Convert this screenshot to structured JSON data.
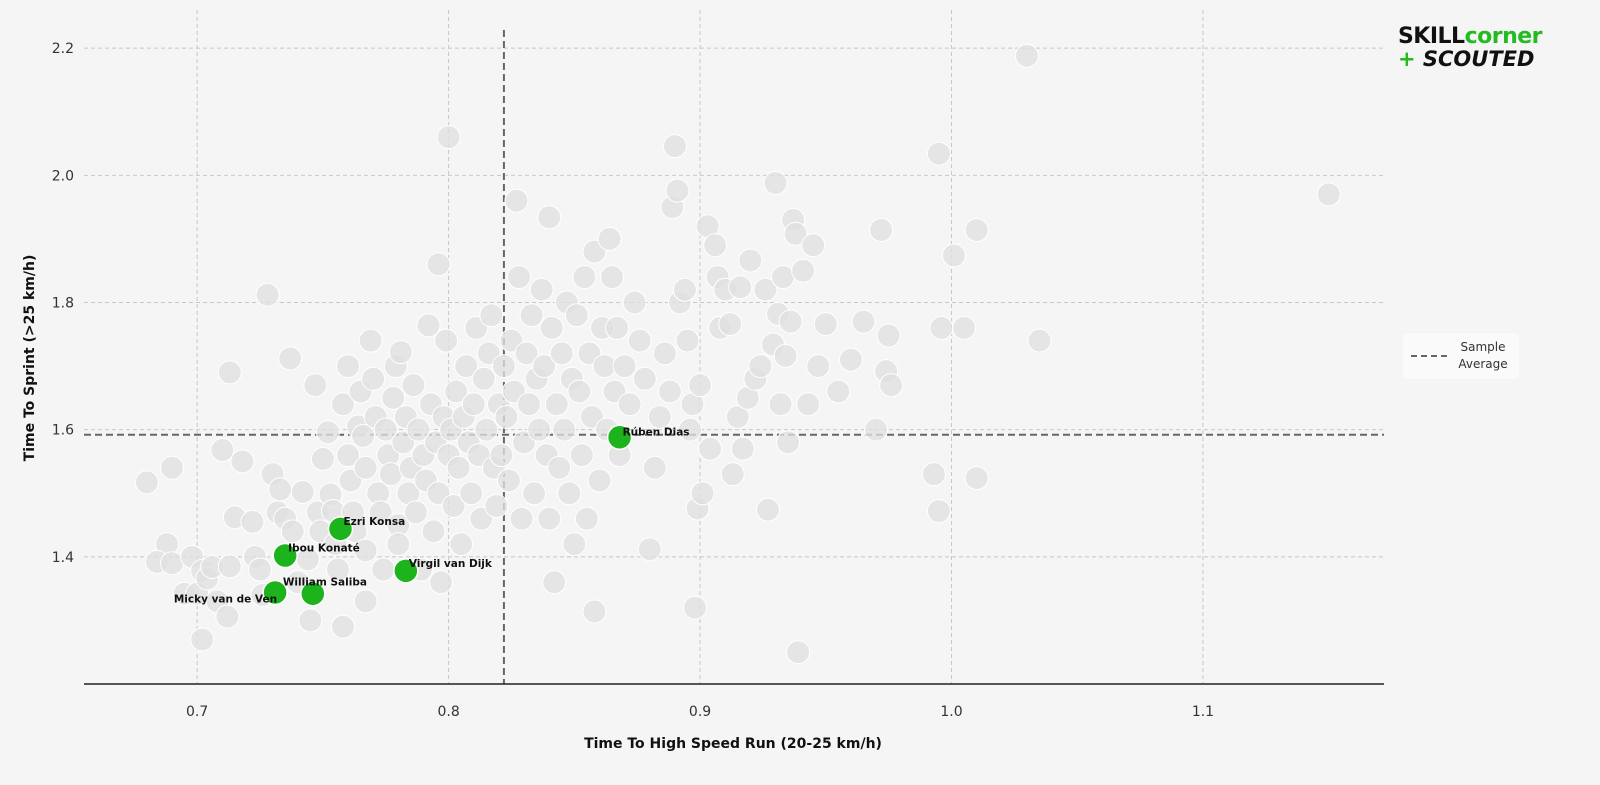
{
  "chart_data": {
    "type": "scatter",
    "xlabel": "Time To High Speed Run (20-25 km/h)",
    "ylabel": "Time To Sprint (>25 km/h)",
    "xlim": [
      0.655,
      1.172
    ],
    "ylim": [
      1.2,
      2.26
    ],
    "xticks": [
      0.7,
      0.8,
      0.9,
      1.0,
      1.1
    ],
    "xtick_labels": [
      "0.7",
      "0.8",
      "0.9",
      "1.0",
      "1.1"
    ],
    "yticks": [
      1.4,
      1.6,
      1.8,
      2.0,
      2.2
    ],
    "ytick_labels": [
      "1.4",
      "1.6",
      "1.8",
      "2.0",
      "2.2"
    ],
    "grid": true,
    "reference_lines": {
      "x": 0.822,
      "y": 1.592,
      "legend_label": "Sample Average"
    },
    "legend": {
      "label": "Sample Average",
      "position": "right"
    },
    "colors": {
      "highlight": "#1db31d",
      "background_points": "#e0e0e0",
      "average_line": "#666666"
    },
    "highlighted": [
      {
        "name": "Rúben Dias",
        "x": 0.868,
        "y": 1.588
      },
      {
        "name": "Ezri Konsa",
        "x": 0.757,
        "y": 1.444
      },
      {
        "name": "Ibou Konaté",
        "x": 0.735,
        "y": 1.402
      },
      {
        "name": "Virgil van Dijk",
        "x": 0.783,
        "y": 1.378
      },
      {
        "name": "William Saliba",
        "x": 0.746,
        "y": 1.342
      },
      {
        "name": "Micky van de Ven",
        "x": 0.731,
        "y": 1.344
      }
    ],
    "points": [
      [
        0.68,
        1.517
      ],
      [
        0.69,
        1.54
      ],
      [
        0.688,
        1.42
      ],
      [
        0.684,
        1.392
      ],
      [
        0.69,
        1.39
      ],
      [
        0.695,
        1.342
      ],
      [
        0.7,
        1.342
      ],
      [
        0.698,
        1.4
      ],
      [
        0.702,
        1.378
      ],
      [
        0.704,
        1.366
      ],
      [
        0.706,
        1.384
      ],
      [
        0.708,
        1.33
      ],
      [
        0.702,
        1.27
      ],
      [
        0.71,
        1.568
      ],
      [
        0.713,
        1.69
      ],
      [
        0.713,
        1.385
      ],
      [
        0.715,
        1.462
      ],
      [
        0.712,
        1.306
      ],
      [
        0.718,
        1.55
      ],
      [
        0.722,
        1.455
      ],
      [
        0.723,
        1.4
      ],
      [
        0.725,
        1.38
      ],
      [
        0.726,
        1.34
      ],
      [
        0.728,
        1.812
      ],
      [
        0.73,
        1.53
      ],
      [
        0.732,
        1.47
      ],
      [
        0.733,
        1.506
      ],
      [
        0.735,
        1.46
      ],
      [
        0.737,
        1.712
      ],
      [
        0.738,
        1.44
      ],
      [
        0.74,
        1.36
      ],
      [
        0.742,
        1.502
      ],
      [
        0.744,
        1.396
      ],
      [
        0.745,
        1.3
      ],
      [
        0.747,
        1.67
      ],
      [
        0.748,
        1.47
      ],
      [
        0.749,
        1.44
      ],
      [
        0.75,
        1.554
      ],
      [
        0.752,
        1.596
      ],
      [
        0.753,
        1.498
      ],
      [
        0.754,
        1.472
      ],
      [
        0.755,
        1.42
      ],
      [
        0.756,
        1.38
      ],
      [
        0.758,
        1.64
      ],
      [
        0.758,
        1.29
      ],
      [
        0.76,
        1.7
      ],
      [
        0.76,
        1.56
      ],
      [
        0.761,
        1.52
      ],
      [
        0.762,
        1.47
      ],
      [
        0.763,
        1.44
      ],
      [
        0.764,
        1.605
      ],
      [
        0.765,
        1.66
      ],
      [
        0.766,
        1.59
      ],
      [
        0.767,
        1.54
      ],
      [
        0.767,
        1.41
      ],
      [
        0.767,
        1.33
      ],
      [
        0.769,
        1.74
      ],
      [
        0.77,
        1.68
      ],
      [
        0.771,
        1.62
      ],
      [
        0.772,
        1.5
      ],
      [
        0.773,
        1.47
      ],
      [
        0.774,
        1.38
      ],
      [
        0.775,
        1.6
      ],
      [
        0.776,
        1.56
      ],
      [
        0.777,
        1.53
      ],
      [
        0.778,
        1.65
      ],
      [
        0.779,
        1.7
      ],
      [
        0.78,
        1.45
      ],
      [
        0.78,
        1.42
      ],
      [
        0.781,
        1.722
      ],
      [
        0.782,
        1.58
      ],
      [
        0.783,
        1.62
      ],
      [
        0.784,
        1.5
      ],
      [
        0.785,
        1.54
      ],
      [
        0.786,
        1.67
      ],
      [
        0.787,
        1.47
      ],
      [
        0.788,
        1.6
      ],
      [
        0.789,
        1.38
      ],
      [
        0.79,
        1.56
      ],
      [
        0.791,
        1.52
      ],
      [
        0.792,
        1.764
      ],
      [
        0.793,
        1.64
      ],
      [
        0.794,
        1.44
      ],
      [
        0.795,
        1.58
      ],
      [
        0.796,
        1.86
      ],
      [
        0.796,
        1.5
      ],
      [
        0.797,
        1.36
      ],
      [
        0.798,
        1.62
      ],
      [
        0.799,
        1.74
      ],
      [
        0.8,
        2.06
      ],
      [
        0.8,
        1.56
      ],
      [
        0.801,
        1.6
      ],
      [
        0.802,
        1.48
      ],
      [
        0.803,
        1.66
      ],
      [
        0.804,
        1.54
      ],
      [
        0.805,
        1.42
      ],
      [
        0.806,
        1.62
      ],
      [
        0.807,
        1.7
      ],
      [
        0.808,
        1.58
      ],
      [
        0.809,
        1.5
      ],
      [
        0.81,
        1.64
      ],
      [
        0.811,
        1.76
      ],
      [
        0.812,
        1.56
      ],
      [
        0.813,
        1.46
      ],
      [
        0.814,
        1.68
      ],
      [
        0.815,
        1.6
      ],
      [
        0.816,
        1.72
      ],
      [
        0.817,
        1.78
      ],
      [
        0.818,
        1.54
      ],
      [
        0.819,
        1.48
      ],
      [
        0.82,
        1.64
      ],
      [
        0.821,
        1.56
      ],
      [
        0.822,
        1.7
      ],
      [
        0.823,
        1.62
      ],
      [
        0.824,
        1.52
      ],
      [
        0.825,
        1.74
      ],
      [
        0.826,
        1.66
      ],
      [
        0.827,
        1.96
      ],
      [
        0.828,
        1.84
      ],
      [
        0.829,
        1.46
      ],
      [
        0.83,
        1.58
      ],
      [
        0.831,
        1.72
      ],
      [
        0.832,
        1.64
      ],
      [
        0.833,
        1.78
      ],
      [
        0.834,
        1.5
      ],
      [
        0.835,
        1.68
      ],
      [
        0.836,
        1.6
      ],
      [
        0.837,
        1.82
      ],
      [
        0.838,
        1.7
      ],
      [
        0.839,
        1.56
      ],
      [
        0.84,
        1.934
      ],
      [
        0.84,
        1.46
      ],
      [
        0.841,
        1.76
      ],
      [
        0.842,
        1.36
      ],
      [
        0.843,
        1.64
      ],
      [
        0.844,
        1.54
      ],
      [
        0.845,
        1.72
      ],
      [
        0.846,
        1.6
      ],
      [
        0.847,
        1.8
      ],
      [
        0.848,
        1.5
      ],
      [
        0.849,
        1.68
      ],
      [
        0.85,
        1.42
      ],
      [
        0.851,
        1.78
      ],
      [
        0.852,
        1.66
      ],
      [
        0.853,
        1.56
      ],
      [
        0.854,
        1.84
      ],
      [
        0.855,
        1.46
      ],
      [
        0.856,
        1.72
      ],
      [
        0.857,
        1.62
      ],
      [
        0.858,
        1.88
      ],
      [
        0.858,
        1.314
      ],
      [
        0.86,
        1.52
      ],
      [
        0.861,
        1.76
      ],
      [
        0.862,
        1.7
      ],
      [
        0.863,
        1.6
      ],
      [
        0.864,
        1.9
      ],
      [
        0.865,
        1.84
      ],
      [
        0.866,
        1.66
      ],
      [
        0.867,
        1.76
      ],
      [
        0.868,
        1.56
      ],
      [
        0.87,
        1.7
      ],
      [
        0.872,
        1.64
      ],
      [
        0.874,
        1.8
      ],
      [
        0.876,
        1.74
      ],
      [
        0.878,
        1.68
      ],
      [
        0.88,
        1.412
      ],
      [
        0.882,
        1.54
      ],
      [
        0.884,
        1.62
      ],
      [
        0.886,
        1.72
      ],
      [
        0.888,
        1.66
      ],
      [
        0.889,
        1.95
      ],
      [
        0.89,
        2.046
      ],
      [
        0.891,
        1.976
      ],
      [
        0.892,
        1.8
      ],
      [
        0.894,
        1.82
      ],
      [
        0.895,
        1.74
      ],
      [
        0.896,
        1.6
      ],
      [
        0.897,
        1.64
      ],
      [
        0.898,
        1.32
      ],
      [
        0.899,
        1.476
      ],
      [
        0.9,
        1.67
      ],
      [
        0.901,
        1.5
      ],
      [
        0.903,
        1.92
      ],
      [
        0.904,
        1.57
      ],
      [
        0.906,
        1.89
      ],
      [
        0.907,
        1.84
      ],
      [
        0.908,
        1.76
      ],
      [
        0.91,
        1.82
      ],
      [
        0.912,
        1.766
      ],
      [
        0.913,
        1.53
      ],
      [
        0.915,
        1.62
      ],
      [
        0.916,
        1.824
      ],
      [
        0.917,
        1.57
      ],
      [
        0.919,
        1.65
      ],
      [
        0.92,
        1.866
      ],
      [
        0.922,
        1.68
      ],
      [
        0.924,
        1.7
      ],
      [
        0.926,
        1.82
      ],
      [
        0.927,
        1.474
      ],
      [
        0.929,
        1.734
      ],
      [
        0.93,
        1.988
      ],
      [
        0.931,
        1.782
      ],
      [
        0.932,
        1.64
      ],
      [
        0.933,
        1.84
      ],
      [
        0.934,
        1.716
      ],
      [
        0.935,
        1.58
      ],
      [
        0.936,
        1.77
      ],
      [
        0.937,
        1.93
      ],
      [
        0.938,
        1.908
      ],
      [
        0.939,
        1.25
      ],
      [
        0.941,
        1.85
      ],
      [
        0.943,
        1.64
      ],
      [
        0.945,
        1.89
      ],
      [
        0.947,
        1.7
      ],
      [
        0.95,
        1.766
      ],
      [
        0.955,
        1.66
      ],
      [
        0.96,
        1.71
      ],
      [
        0.965,
        1.77
      ],
      [
        0.97,
        1.6
      ],
      [
        0.972,
        1.914
      ],
      [
        0.974,
        1.692
      ],
      [
        0.975,
        1.748
      ],
      [
        0.976,
        1.67
      ],
      [
        0.993,
        1.53
      ],
      [
        0.995,
        1.472
      ],
      [
        0.995,
        2.034
      ],
      [
        0.996,
        1.76
      ],
      [
        1.001,
        1.874
      ],
      [
        1.005,
        1.76
      ],
      [
        1.01,
        1.524
      ],
      [
        1.01,
        1.914
      ],
      [
        1.03,
        2.188
      ],
      [
        1.035,
        1.74
      ],
      [
        1.15,
        1.97
      ]
    ]
  }
}
